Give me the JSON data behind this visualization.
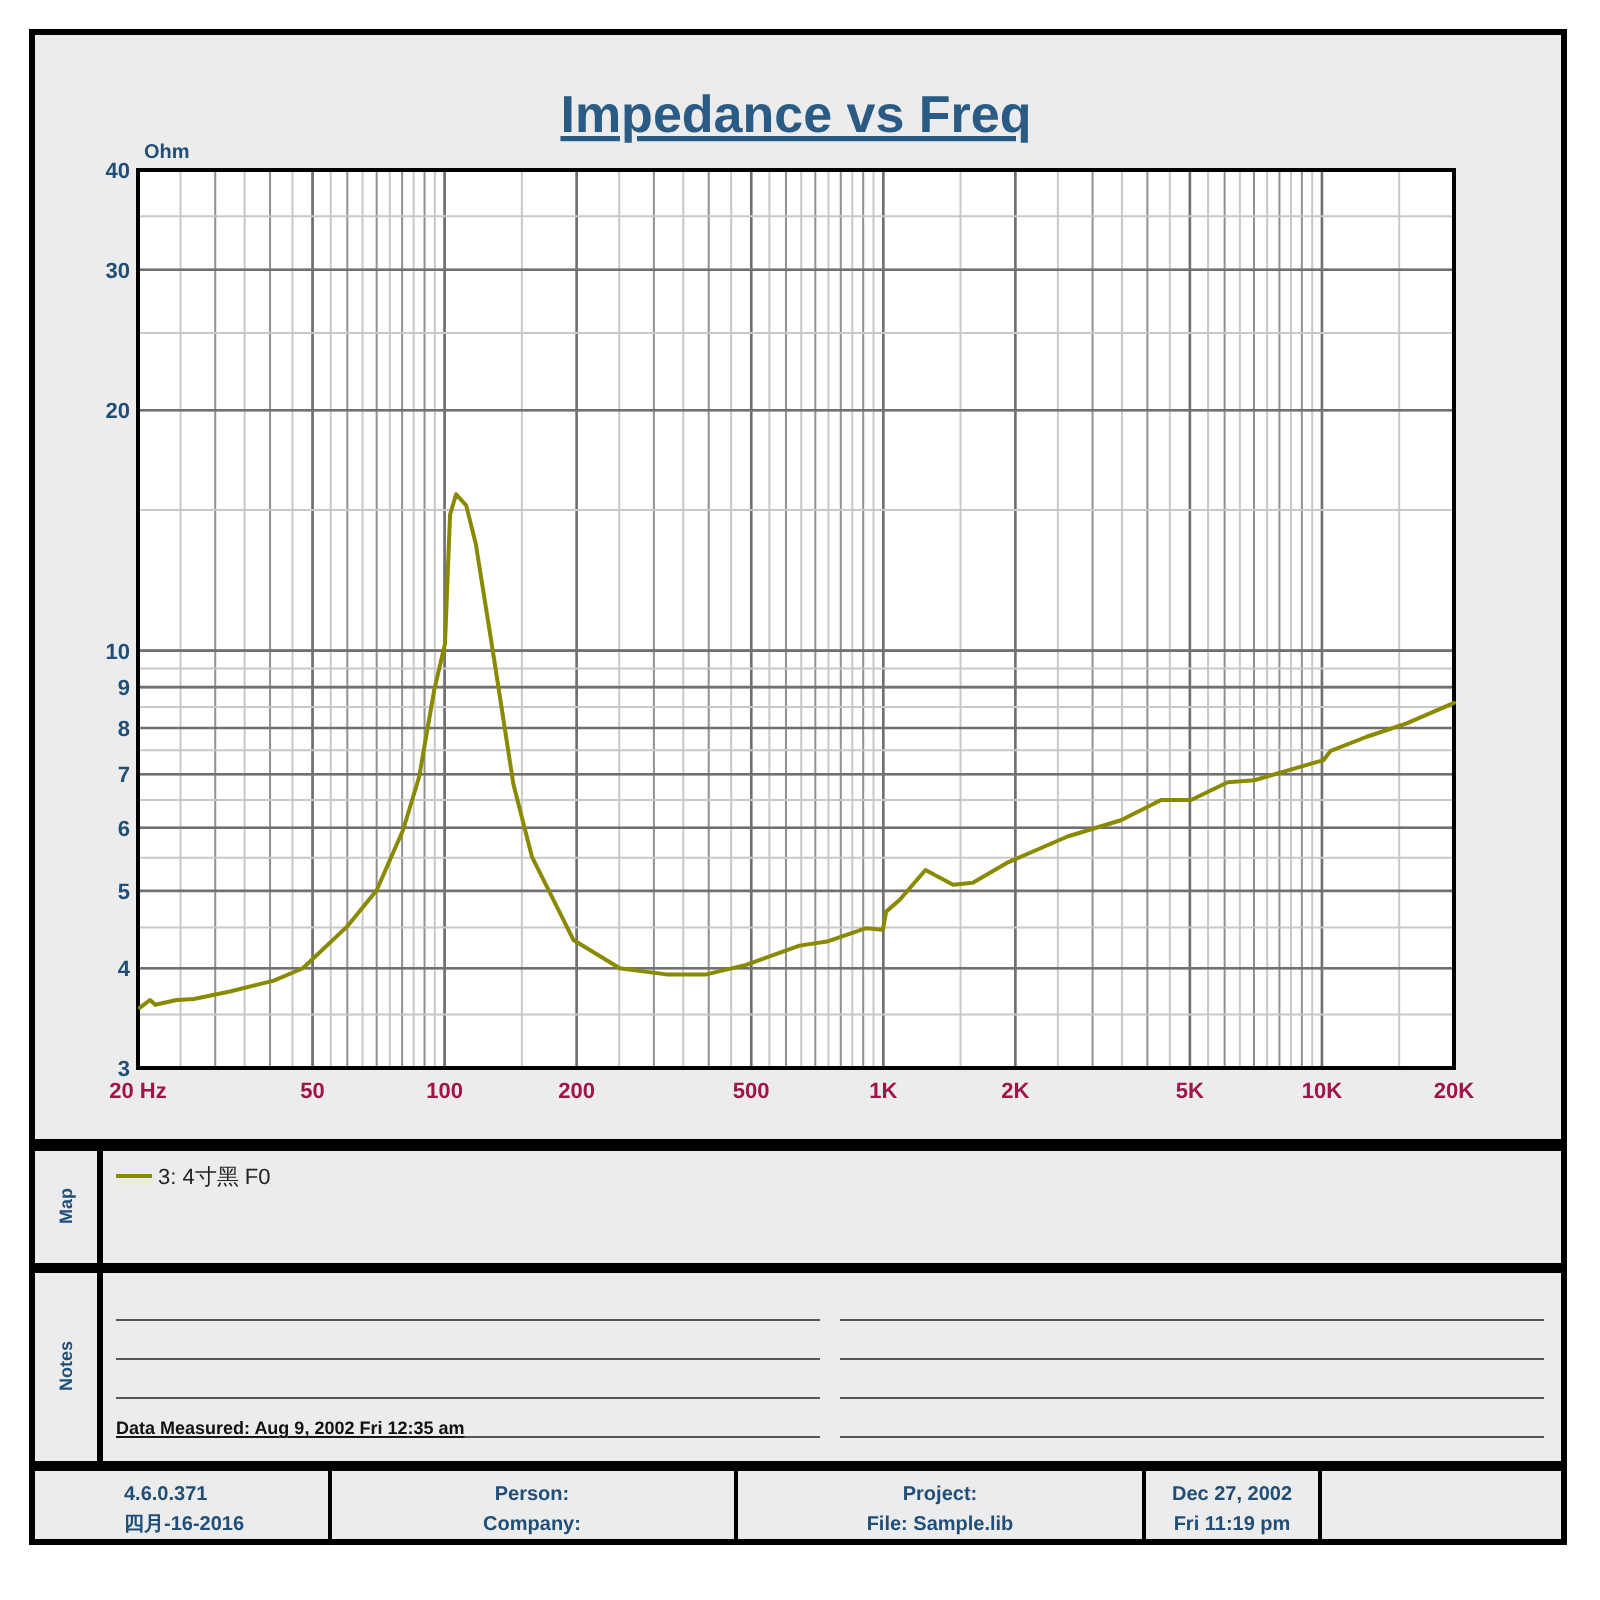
{
  "chart_data": {
    "type": "line",
    "title": "Impedance vs Freq",
    "ylabel": "Ohm",
    "log": "xy",
    "grid": true,
    "legend": "bottom",
    "xlim": [
      20,
      20000
    ],
    "ylim": [
      3,
      40
    ],
    "xticks": [
      {
        "value": 20,
        "label": "20  Hz"
      },
      50,
      100,
      200,
      500,
      {
        "value": 1000,
        "label": "1K"
      },
      {
        "value": 2000,
        "label": "2K"
      },
      {
        "value": 5000,
        "label": "5K"
      },
      {
        "value": 10000,
        "label": "10K"
      },
      {
        "value": 20000,
        "label": "20K"
      }
    ],
    "yticks": [
      3,
      4,
      5,
      6,
      7,
      8,
      9,
      10,
      20,
      30,
      40
    ],
    "series": [
      {
        "name": "3: 4寸黑  F0",
        "color": "#8a8a00",
        "x": [
          20.2,
          21.3,
          21.9,
          24.5,
          26.8,
          32.4,
          40.8,
          47.5,
          59.9,
          70,
          80.4,
          87.5,
          94.7,
          100.2,
          102.9,
          106.2,
          112,
          117.8,
          129.5,
          143.5,
          158.1,
          196.6,
          250.8,
          320,
          395,
          487,
          644,
          744,
          914,
          998,
          1015,
          1089,
          1248,
          1443,
          1600,
          1912,
          2630,
          3480,
          4300,
          5030,
          6100,
          7010,
          8600,
          10080,
          10470,
          12650,
          15550,
          20000
        ],
        "values": [
          3.57,
          3.65,
          3.6,
          3.65,
          3.66,
          3.74,
          3.86,
          4.0,
          4.51,
          5.01,
          5.96,
          6.95,
          8.93,
          10.2,
          14.8,
          15.7,
          15.2,
          13.6,
          9.8,
          6.8,
          5.52,
          4.34,
          4.0,
          3.93,
          3.93,
          4.04,
          4.27,
          4.32,
          4.49,
          4.47,
          4.71,
          4.87,
          5.31,
          5.09,
          5.12,
          5.42,
          5.85,
          6.13,
          6.5,
          6.5,
          6.84,
          6.88,
          7.11,
          7.29,
          7.49,
          7.8,
          8.1,
          8.6
        ]
      }
    ],
    "annotations": [
      "Map",
      "Notes",
      "Data Measured: Aug  9, 2002  Fri 12:35 am",
      "4.6.0.371",
      "四月-16-2016",
      "Person:",
      "Company:",
      "Project:",
      "File: Sample.lib",
      "Dec 27, 2002",
      "Fri 11:19 pm"
    ]
  }
}
